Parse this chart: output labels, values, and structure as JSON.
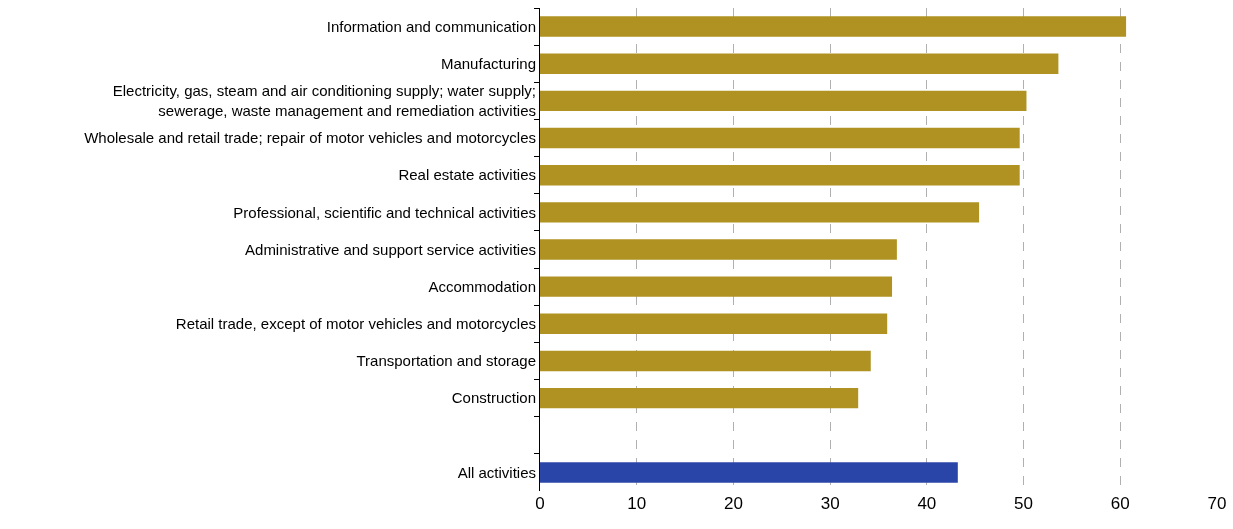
{
  "chart_data": {
    "type": "bar",
    "orientation": "horizontal",
    "categories": [
      "Information and communication",
      "Manufacturing",
      "Electricity, gas, steam and air conditioning supply; water supply;\nsewerage, waste management and remediation activities",
      "Wholesale and retail trade; repair of motor vehicles and motorcycles",
      "Real estate activities",
      "Professional, scientific and technical activities",
      "Administrative and support service activities",
      "Accommodation",
      "Retail trade, except of motor vehicles and motorcycles",
      "Transportation and storage",
      "Construction",
      null,
      "All activities"
    ],
    "values": [
      60.6,
      53.6,
      50.3,
      49.6,
      49.6,
      45.4,
      36.9,
      36.4,
      35.9,
      34.2,
      32.9,
      null,
      43.2
    ],
    "colors": [
      "#b09222",
      "#b09222",
      "#b09222",
      "#b09222",
      "#b09222",
      "#b09222",
      "#b09222",
      "#b09222",
      "#b09222",
      "#b09222",
      "#b09222",
      "#b09222",
      "#2a45a8"
    ],
    "xlim": [
      0,
      70
    ],
    "xticks": [
      0,
      10,
      20,
      30,
      40,
      50,
      60,
      70
    ],
    "grid": "x",
    "legend": false
  }
}
